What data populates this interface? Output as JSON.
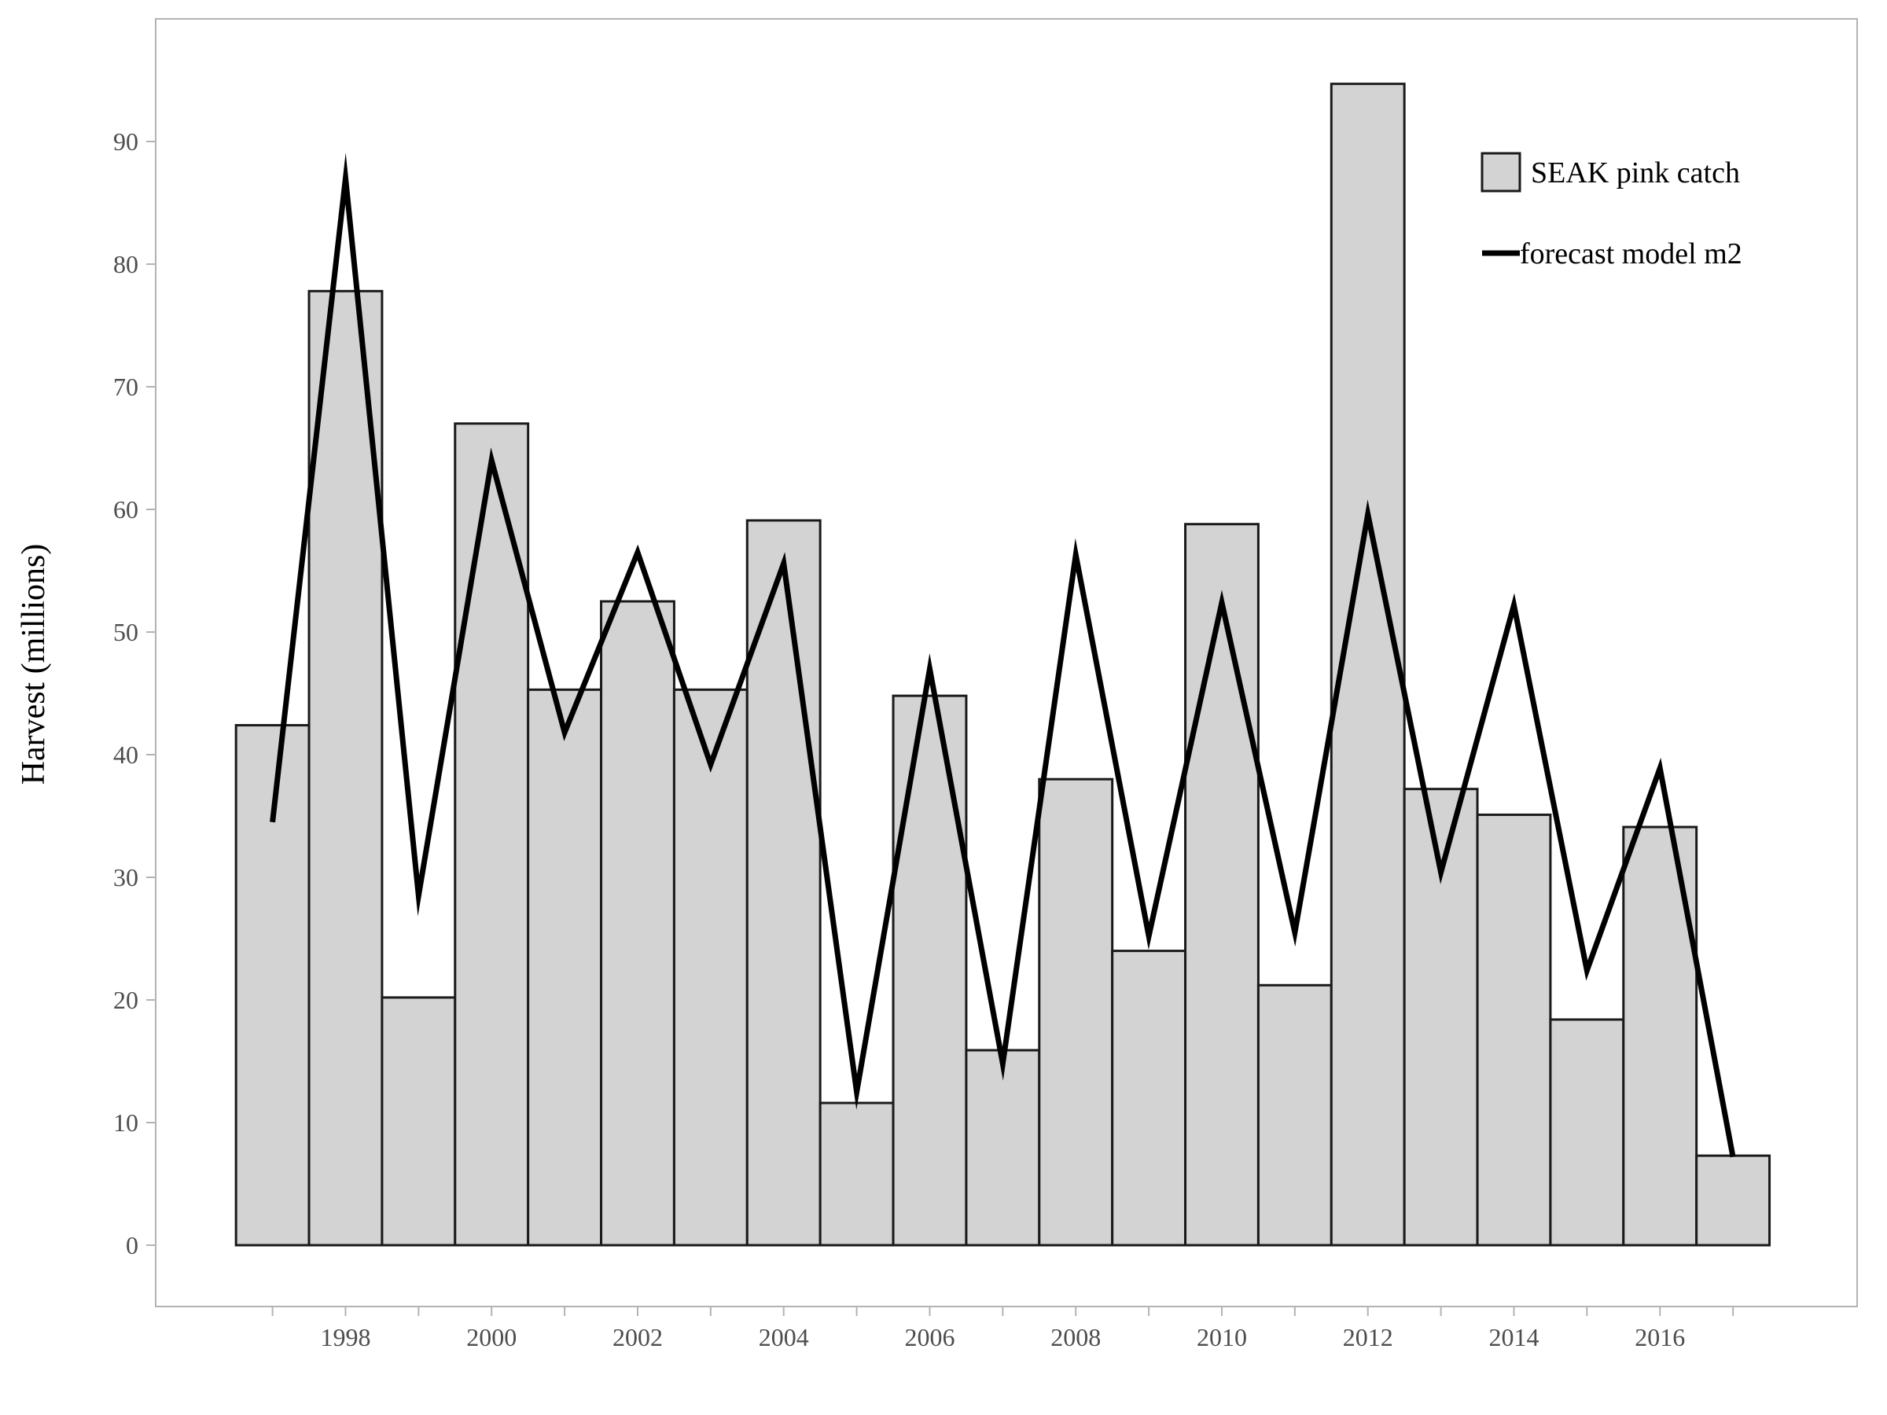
{
  "chart_data": {
    "type": "bar",
    "xlabel": "",
    "ylabel": "Harvest (millions)",
    "ylim": [
      -5,
      100
    ],
    "xlim": [
      1995.4,
      2018.7
    ],
    "y_ticks": [
      0,
      10,
      20,
      30,
      40,
      50,
      60,
      70,
      80,
      90
    ],
    "x_ticks": [
      1997,
      1998,
      1999,
      2000,
      2001,
      2002,
      2003,
      2004,
      2005,
      2006,
      2007,
      2008,
      2009,
      2010,
      2011,
      2012,
      2013,
      2014,
      2015,
      2016,
      2017
    ],
    "x_tick_labels": [
      1998,
      2000,
      2002,
      2004,
      2006,
      2008,
      2010,
      2012,
      2014,
      2016
    ],
    "grid": false,
    "legend_position": "top-right",
    "categories": [
      1997,
      1998,
      1999,
      2000,
      2001,
      2002,
      2003,
      2004,
      2005,
      2006,
      2007,
      2008,
      2009,
      2010,
      2011,
      2012,
      2013,
      2014,
      2015,
      2016,
      2017
    ],
    "series": [
      {
        "name": "SEAK pink catch",
        "type": "bar",
        "color": "#d3d3d3",
        "edge_color": "#1a1a1a",
        "values": [
          42.4,
          77.8,
          20.2,
          67.0,
          45.3,
          52.5,
          45.3,
          59.1,
          11.6,
          44.8,
          15.9,
          38.0,
          24.0,
          58.8,
          21.2,
          94.7,
          37.2,
          35.1,
          18.4,
          34.1,
          7.3
        ]
      },
      {
        "name": "forecast model m2",
        "type": "line",
        "color": "#000000",
        "values": [
          34.5,
          87.0,
          28.5,
          64.0,
          41.8,
          56.5,
          39.2,
          55.6,
          12.5,
          47.0,
          14.8,
          56.3,
          25.2,
          52.4,
          25.5,
          59.6,
          30.4,
          52.2,
          22.4,
          38.9,
          7.2
        ]
      }
    ]
  }
}
